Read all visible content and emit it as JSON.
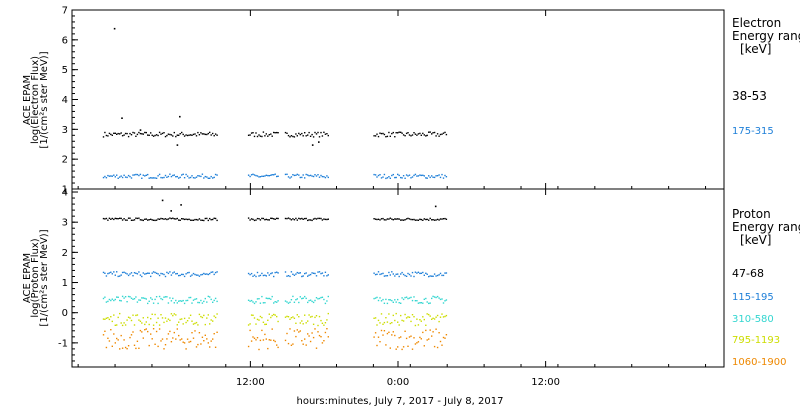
{
  "chart_data": [
    {
      "type": "scatter",
      "panel": "electron",
      "ylabel": [
        "ACE EPAM",
        "log(Electron Flux)",
        "[1/(cm²s ster MeV)]"
      ],
      "ylim": [
        1,
        7
      ],
      "yticks": [
        1,
        2,
        3,
        4,
        5,
        6,
        7
      ],
      "legend_title": [
        "Electron",
        "Energy range",
        "[keV]"
      ],
      "series": [
        {
          "name": "38-53",
          "color": "#000000",
          "values": [
            {
              "x": 0.9,
              "y": 6.4
            },
            {
              "x": 1.5,
              "y": 3.4
            },
            {
              "x": 3.0,
              "y": 3.0
            },
            {
              "x": 6.2,
              "y": 3.45
            },
            {
              "x": 6.0,
              "y": 2.5
            },
            {
              "x": 17.0,
              "y": 2.5
            },
            {
              "x": 17.5,
              "y": 2.6
            }
          ]
        },
        {
          "name": "175-315",
          "color": "#1e7fd8",
          "values": []
        }
      ]
    },
    {
      "type": "scatter",
      "panel": "proton",
      "ylabel": [
        "ACE EPAM",
        "log(Proton Flux)",
        "[1/(cm²s ster MeV)]"
      ],
      "ylim": [
        -1.8,
        4.1
      ],
      "yticks": [
        -1,
        0,
        1,
        2,
        3,
        4
      ],
      "legend_title": [
        "Proton",
        "Energy range",
        "[keV]"
      ],
      "series": [
        {
          "name": "47-68",
          "color": "#000000",
          "values": [
            {
              "x": 4.8,
              "y": 3.75
            },
            {
              "x": 5.5,
              "y": 3.4
            },
            {
              "x": 6.3,
              "y": 3.6
            },
            {
              "x": 27.0,
              "y": 3.55
            }
          ]
        },
        {
          "name": "115-195",
          "color": "#1e7fd8",
          "values": []
        },
        {
          "name": "310-580",
          "color": "#33d6d0",
          "values": []
        },
        {
          "name": "795-1193",
          "color": "#ccdd00",
          "values": []
        },
        {
          "name": "1060-1900",
          "color": "#ee8800",
          "values": []
        }
      ]
    }
  ],
  "x_axis": {
    "label": "hours:minutes,  July  7, 2017 - July  8, 2017",
    "ticks": [
      "12:00",
      "0:00",
      "12:00"
    ]
  }
}
